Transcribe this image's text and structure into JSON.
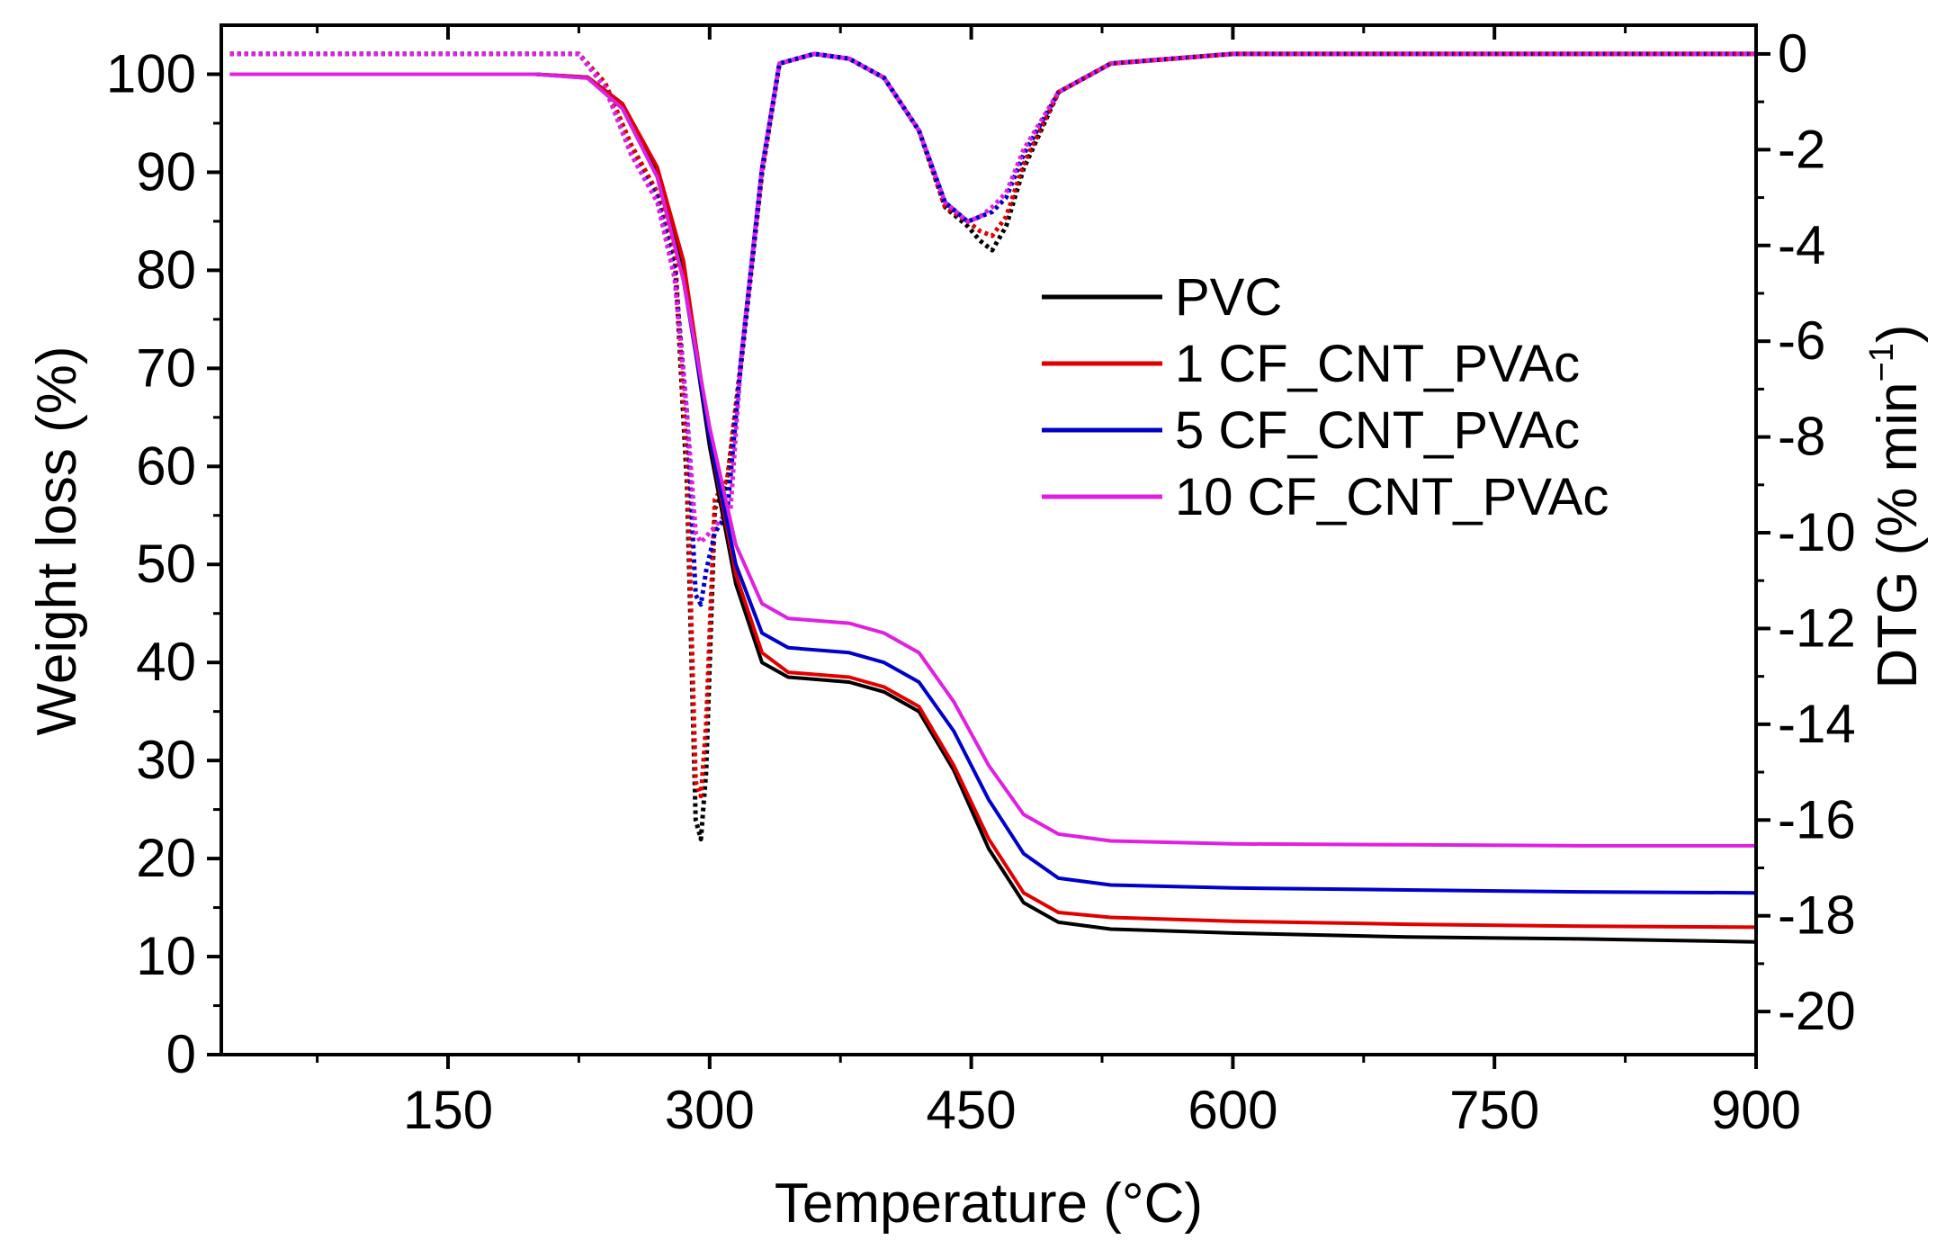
{
  "chart_data": {
    "type": "line",
    "title": "",
    "xlabel": "Temperature (°C)",
    "ylabel": "Weight loss (%)",
    "y2label": "DTG (% min",
    "y2label_sup": "−1",
    "y2label_end": ")",
    "xlim": [
      20,
      900
    ],
    "ylim": [
      0,
      105
    ],
    "y2lim": [
      -20.9,
      0.6
    ],
    "x_ticks": [
      150,
      300,
      450,
      600,
      750,
      900
    ],
    "y_ticks": [
      0,
      10,
      20,
      30,
      40,
      50,
      60,
      70,
      80,
      90,
      100
    ],
    "y2_ticks": [
      0,
      -2,
      -4,
      -6,
      -8,
      -10,
      -12,
      -14,
      -16,
      -18,
      -20
    ],
    "x_tick_labels": [
      "150",
      "300",
      "450",
      "600",
      "750",
      "900"
    ],
    "y_tick_labels": [
      "0",
      "10",
      "20",
      "30",
      "40",
      "50",
      "60",
      "70",
      "80",
      "90",
      "100"
    ],
    "y2_tick_labels": [
      "0",
      "-2",
      "-4",
      "-6",
      "-8",
      "-10",
      "-12",
      "-14",
      "-16",
      "-18",
      "-20"
    ],
    "legend_position": "center-right",
    "legend": [
      "PVC",
      "1 CF_CNT_PVAc",
      "5 CF_CNT_PVAc",
      "10 CF_CNT_PVAc"
    ],
    "series": [
      {
        "name": "PVC",
        "color": "#000000",
        "tg": [
          [
            25,
            100
          ],
          [
            200,
            100
          ],
          [
            230,
            99.7
          ],
          [
            250,
            97
          ],
          [
            270,
            90
          ],
          [
            285,
            80
          ],
          [
            300,
            62
          ],
          [
            315,
            48
          ],
          [
            330,
            40
          ],
          [
            345,
            38.5
          ],
          [
            380,
            38
          ],
          [
            400,
            37
          ],
          [
            420,
            35
          ],
          [
            440,
            29
          ],
          [
            460,
            21
          ],
          [
            480,
            15.5
          ],
          [
            500,
            13.5
          ],
          [
            530,
            12.8
          ],
          [
            600,
            12.4
          ],
          [
            700,
            12
          ],
          [
            800,
            11.8
          ],
          [
            900,
            11.5
          ]
        ],
        "dtg": [
          [
            25,
            0
          ],
          [
            225,
            0
          ],
          [
            240,
            -0.6
          ],
          [
            255,
            -1.9
          ],
          [
            270,
            -2.9
          ],
          [
            280,
            -4.2
          ],
          [
            287,
            -9
          ],
          [
            292,
            -16
          ],
          [
            295,
            -16.4
          ],
          [
            298,
            -15
          ],
          [
            303,
            -9.5
          ],
          [
            310,
            -9
          ],
          [
            318,
            -6.5
          ],
          [
            330,
            -2.5
          ],
          [
            340,
            -0.2
          ],
          [
            360,
            0
          ],
          [
            380,
            -0.1
          ],
          [
            400,
            -0.5
          ],
          [
            420,
            -1.6
          ],
          [
            435,
            -3.2
          ],
          [
            448,
            -3.6
          ],
          [
            455,
            -3.9
          ],
          [
            462,
            -4.1
          ],
          [
            470,
            -3.6
          ],
          [
            480,
            -2.4
          ],
          [
            500,
            -0.8
          ],
          [
            530,
            -0.2
          ],
          [
            600,
            0
          ],
          [
            900,
            0
          ]
        ]
      },
      {
        "name": "1 CF_CNT_PVAc",
        "color": "#e00000",
        "tg": [
          [
            25,
            100
          ],
          [
            200,
            100
          ],
          [
            230,
            99.7
          ],
          [
            250,
            97
          ],
          [
            270,
            90.5
          ],
          [
            285,
            81
          ],
          [
            300,
            63
          ],
          [
            315,
            49
          ],
          [
            330,
            41
          ],
          [
            345,
            39
          ],
          [
            380,
            38.5
          ],
          [
            400,
            37.5
          ],
          [
            420,
            35.5
          ],
          [
            440,
            29.5
          ],
          [
            460,
            22
          ],
          [
            480,
            16.5
          ],
          [
            500,
            14.5
          ],
          [
            530,
            14
          ],
          [
            600,
            13.6
          ],
          [
            700,
            13.3
          ],
          [
            800,
            13.1
          ],
          [
            900,
            13
          ]
        ],
        "dtg": [
          [
            25,
            0
          ],
          [
            225,
            0
          ],
          [
            240,
            -0.6
          ],
          [
            255,
            -1.9
          ],
          [
            270,
            -2.9
          ],
          [
            280,
            -4.1
          ],
          [
            287,
            -8.5
          ],
          [
            292,
            -15.2
          ],
          [
            295,
            -15.5
          ],
          [
            298,
            -14
          ],
          [
            303,
            -9.3
          ],
          [
            310,
            -8.9
          ],
          [
            318,
            -6.4
          ],
          [
            330,
            -2.5
          ],
          [
            340,
            -0.2
          ],
          [
            360,
            0
          ],
          [
            380,
            -0.1
          ],
          [
            400,
            -0.5
          ],
          [
            420,
            -1.6
          ],
          [
            435,
            -3.2
          ],
          [
            448,
            -3.5
          ],
          [
            455,
            -3.7
          ],
          [
            462,
            -3.8
          ],
          [
            470,
            -3.4
          ],
          [
            480,
            -2.3
          ],
          [
            500,
            -0.8
          ],
          [
            530,
            -0.2
          ],
          [
            600,
            0
          ],
          [
            900,
            0
          ]
        ]
      },
      {
        "name": "5 CF_CNT_PVAc",
        "color": "#0000c8",
        "tg": [
          [
            25,
            100
          ],
          [
            200,
            100
          ],
          [
            230,
            99.6
          ],
          [
            250,
            96.5
          ],
          [
            270,
            89.5
          ],
          [
            285,
            79
          ],
          [
            300,
            63
          ],
          [
            315,
            50
          ],
          [
            330,
            43
          ],
          [
            345,
            41.5
          ],
          [
            380,
            41
          ],
          [
            400,
            40
          ],
          [
            420,
            38
          ],
          [
            440,
            33
          ],
          [
            460,
            26
          ],
          [
            480,
            20.5
          ],
          [
            500,
            18
          ],
          [
            530,
            17.3
          ],
          [
            600,
            17
          ],
          [
            700,
            16.8
          ],
          [
            800,
            16.6
          ],
          [
            900,
            16.5
          ]
        ],
        "dtg": [
          [
            25,
            0
          ],
          [
            225,
            0
          ],
          [
            240,
            -0.7
          ],
          [
            255,
            -2.1
          ],
          [
            270,
            -3
          ],
          [
            280,
            -4.5
          ],
          [
            287,
            -7.5
          ],
          [
            292,
            -11.3
          ],
          [
            295,
            -11.5
          ],
          [
            298,
            -10.8
          ],
          [
            303,
            -10
          ],
          [
            310,
            -9.6
          ],
          [
            318,
            -6.4
          ],
          [
            330,
            -2.4
          ],
          [
            340,
            -0.2
          ],
          [
            360,
            0
          ],
          [
            380,
            -0.1
          ],
          [
            400,
            -0.5
          ],
          [
            420,
            -1.6
          ],
          [
            435,
            -3.1
          ],
          [
            448,
            -3.5
          ],
          [
            455,
            -3.4
          ],
          [
            462,
            -3.3
          ],
          [
            470,
            -3
          ],
          [
            480,
            -2.1
          ],
          [
            500,
            -0.8
          ],
          [
            530,
            -0.2
          ],
          [
            600,
            0
          ],
          [
            900,
            0
          ]
        ]
      },
      {
        "name": "10 CF_CNT_PVAc",
        "color": "#e020e0",
        "tg": [
          [
            25,
            100
          ],
          [
            200,
            100
          ],
          [
            230,
            99.6
          ],
          [
            250,
            96.5
          ],
          [
            270,
            89.5
          ],
          [
            285,
            79
          ],
          [
            300,
            64
          ],
          [
            315,
            52
          ],
          [
            330,
            46
          ],
          [
            345,
            44.5
          ],
          [
            380,
            44
          ],
          [
            400,
            43
          ],
          [
            420,
            41
          ],
          [
            440,
            36
          ],
          [
            460,
            29.5
          ],
          [
            480,
            24.5
          ],
          [
            500,
            22.5
          ],
          [
            530,
            21.8
          ],
          [
            600,
            21.5
          ],
          [
            700,
            21.4
          ],
          [
            800,
            21.3
          ],
          [
            900,
            21.3
          ]
        ],
        "dtg": [
          [
            25,
            0
          ],
          [
            225,
            0
          ],
          [
            240,
            -0.7
          ],
          [
            255,
            -2.1
          ],
          [
            270,
            -3.1
          ],
          [
            280,
            -4.7
          ],
          [
            287,
            -7.5
          ],
          [
            292,
            -10
          ],
          [
            295,
            -10.2
          ],
          [
            300,
            -10
          ],
          [
            307,
            -9.7
          ],
          [
            312,
            -9.5
          ],
          [
            318,
            -6.4
          ],
          [
            330,
            -2.4
          ],
          [
            340,
            -0.2
          ],
          [
            360,
            0
          ],
          [
            380,
            -0.1
          ],
          [
            400,
            -0.5
          ],
          [
            420,
            -1.6
          ],
          [
            435,
            -3.1
          ],
          [
            448,
            -3.5
          ],
          [
            455,
            -3.4
          ],
          [
            462,
            -3.2
          ],
          [
            470,
            -2.9
          ],
          [
            480,
            -2
          ],
          [
            500,
            -0.8
          ],
          [
            530,
            -0.2
          ],
          [
            600,
            0
          ],
          [
            900,
            0
          ]
        ]
      }
    ]
  }
}
